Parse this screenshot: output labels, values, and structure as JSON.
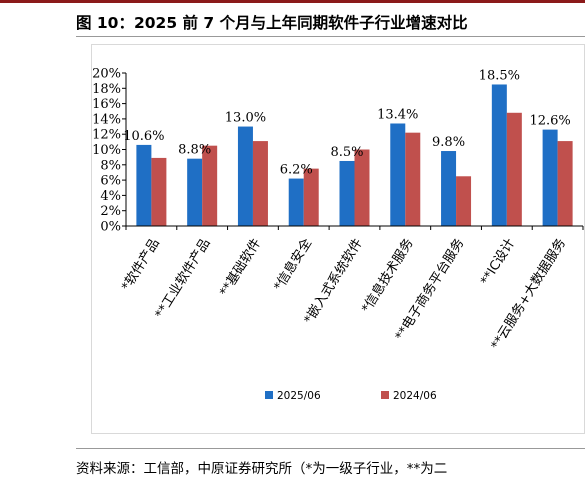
{
  "figure": {
    "title": "图 10：2025 前 7 个月与上年同期软件子行业增速对比",
    "source": "资料来源：工信部，中原证券研究所（*为一级子行业，**为二"
  },
  "colors": {
    "accent": "#8b1a1a",
    "series_2025": "#1f6fc5",
    "series_2024": "#c0504d"
  },
  "chart_data": {
    "type": "bar",
    "title": "",
    "xlabel": "",
    "ylabel": "",
    "ylim": [
      0,
      20
    ],
    "yticks": [
      0,
      2,
      4,
      6,
      8,
      10,
      12,
      14,
      16,
      18,
      20
    ],
    "ytick_labels": [
      "0%",
      "2%",
      "4%",
      "6%",
      "8%",
      "10%",
      "12%",
      "14%",
      "16%",
      "18%",
      "20%"
    ],
    "categories": [
      "*软件产品",
      "**工业软件产品",
      "**基础软件",
      "*信息安全",
      "*嵌入式系统软件",
      "*信息技术服务",
      "**电子商务平台服务",
      "**IC设计",
      "**云服务+大数据服务"
    ],
    "series": [
      {
        "name": "2025/06",
        "values": [
          10.6,
          8.8,
          13.0,
          6.2,
          8.5,
          13.4,
          9.8,
          18.5,
          12.6
        ],
        "labels": [
          "10.6%",
          "8.8%",
          "13.0%",
          "6.2%",
          "8.5%",
          "13.4%",
          "9.8%",
          "18.5%",
          "12.6%"
        ]
      },
      {
        "name": "2024/06",
        "values": [
          8.9,
          10.5,
          11.1,
          7.5,
          10.0,
          12.2,
          6.5,
          14.8,
          11.1
        ]
      }
    ],
    "legend": "bottom",
    "grid": false
  }
}
